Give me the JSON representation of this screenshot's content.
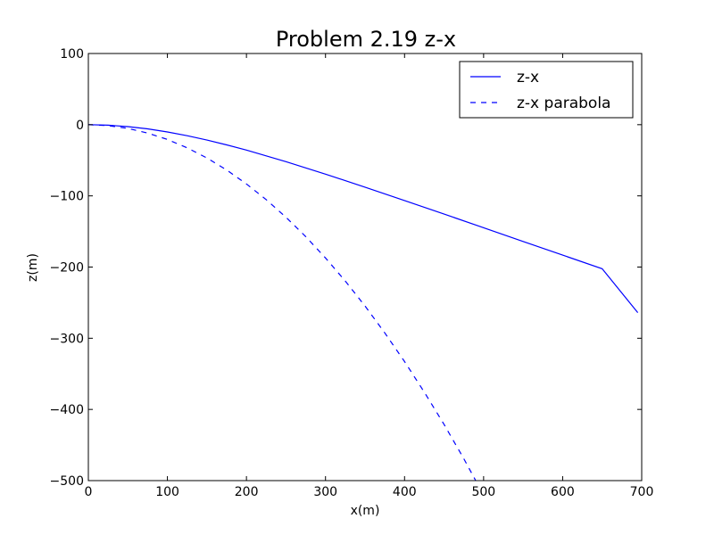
{
  "chart_data": {
    "type": "line",
    "title": "Problem 2.19 z-x",
    "xlabel": "x(m)",
    "ylabel": "z(m)",
    "xlim": [
      0,
      700
    ],
    "ylim": [
      -500,
      100
    ],
    "xticks": [
      0,
      100,
      200,
      300,
      400,
      500,
      600,
      700
    ],
    "yticks": [
      100,
      0,
      -100,
      -200,
      -300,
      -400,
      -500
    ],
    "xtick_labels": [
      "0",
      "100",
      "200",
      "300",
      "400",
      "500",
      "600",
      "700"
    ],
    "ytick_labels": [
      "100",
      "0",
      "−100",
      "−200",
      "−300",
      "−400",
      "−500"
    ],
    "grid": false,
    "legend_position": "top-right",
    "series": [
      {
        "name": "z-x",
        "style": "solid",
        "color": "#0000ff",
        "x": [
          0,
          25,
          50,
          75,
          100,
          125,
          150,
          175,
          200,
          250,
          300,
          350,
          400,
          450,
          500,
          550,
          600,
          650,
          695
        ],
        "y": [
          0,
          -0.7,
          -2.7,
          -5.9,
          -10.2,
          -15.5,
          -21.6,
          -28.4,
          -35.7,
          -52,
          -69.5,
          -87.8,
          -106.6,
          -125.6,
          -144.8,
          -164,
          -183.2,
          -202.4,
          -264
        ]
      },
      {
        "name": "z-x parabola",
        "style": "dashed",
        "color": "#0000ff",
        "x": [
          0,
          25,
          50,
          75,
          100,
          125,
          150,
          175,
          200,
          225,
          250,
          275,
          300,
          325,
          350,
          375,
          400,
          425,
          450,
          475,
          490
        ],
        "y": [
          0,
          -1.3,
          -5.2,
          -11.7,
          -20.8,
          -32.5,
          -46.8,
          -63.7,
          -83.2,
          -105.3,
          -130,
          -157.3,
          -187.2,
          -219.7,
          -254.8,
          -292.5,
          -332.8,
          -375.7,
          -421.2,
          -469.3,
          -500
        ]
      }
    ]
  }
}
